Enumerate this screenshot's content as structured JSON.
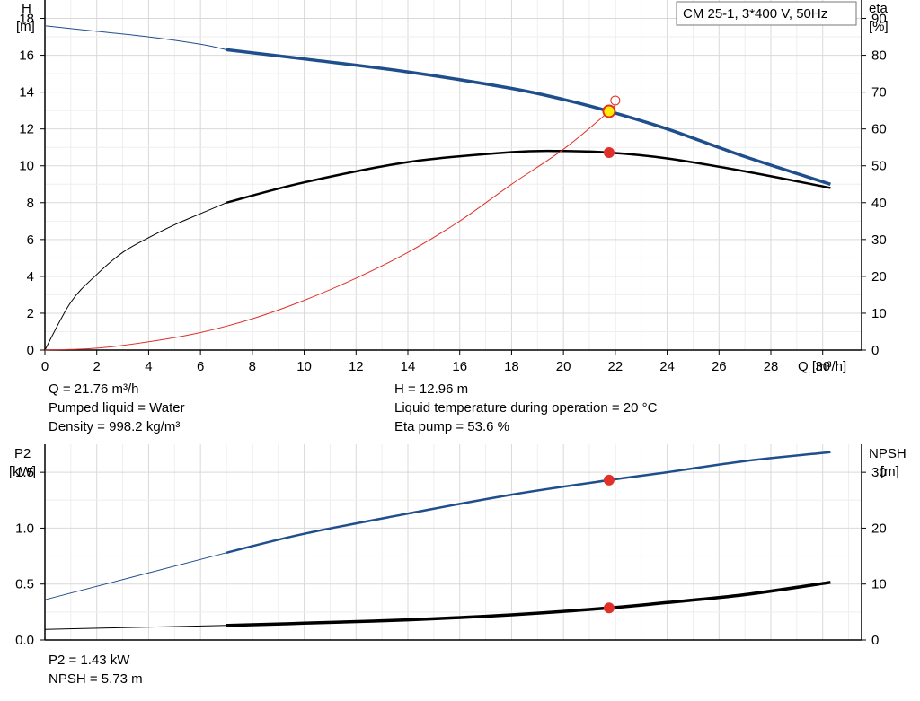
{
  "legend_box": "CM 25-1, 3*400 V, 50Hz",
  "top_chart": {
    "y_left_label": [
      "H",
      "[m]"
    ],
    "y_right_label": [
      "eta",
      "[%]"
    ],
    "x_label": "Q [m³/h]",
    "x_ticks": [
      0,
      2,
      4,
      6,
      8,
      10,
      12,
      14,
      16,
      18,
      20,
      22,
      24,
      26,
      28,
      30
    ],
    "y_left_ticks": [
      0,
      2,
      4,
      6,
      8,
      10,
      12,
      14,
      16,
      18
    ],
    "y_right_ticks": [
      0,
      10,
      20,
      30,
      40,
      50,
      60,
      70,
      80,
      90
    ]
  },
  "info_left": [
    "Q = 21.76 m³/h",
    "Pumped liquid = Water",
    "Density = 998.2 kg/m³"
  ],
  "info_right": [
    "H = 12.96 m",
    "Liquid temperature during operation = 20 °C",
    "Eta pump = 53.6 %"
  ],
  "bottom_chart": {
    "y_left_label": [
      "P2",
      "[kW]"
    ],
    "y_right_label": [
      "NPSH",
      "[m]"
    ],
    "y_left_ticks": [
      "0.0",
      "0.5",
      "1.0",
      "1.5"
    ],
    "y_right_ticks": [
      "0",
      "10",
      "20",
      "30"
    ]
  },
  "info_bottom": [
    "P2 = 1.43 kW",
    "NPSH = 5.73 m"
  ],
  "colors": {
    "head": "#1f4e8c",
    "eta": "#000000",
    "pump_eta_red": "#e0302a",
    "p2": "#1f4e8c",
    "npsh": "#000000",
    "grid": "#d9d9d9"
  },
  "chart_data": [
    {
      "type": "line",
      "x_unit": "Q [m³/h]",
      "xlim": [
        0,
        31.5
      ],
      "ylim_left": [
        0,
        19
      ],
      "ylim_right": [
        0,
        95
      ],
      "grid": true,
      "operating_point": {
        "Q": 21.76,
        "H": 12.96,
        "eta": 53.6
      },
      "series": [
        {
          "axis": "left",
          "x": [
            0,
            2,
            4,
            6,
            7
          ],
          "y": [
            17.6,
            17.3,
            17.0,
            16.6,
            16.3
          ]
        },
        {
          "axis": "left",
          "x": [
            7,
            10,
            14,
            18,
            20,
            21.76,
            24,
            27,
            30.3
          ],
          "y": [
            16.3,
            15.8,
            15.1,
            14.2,
            13.6,
            12.96,
            12.0,
            10.5,
            9.0
          ]
        },
        {
          "axis": "right",
          "x": [
            0,
            1,
            2,
            3,
            4,
            5,
            6,
            7
          ],
          "y": [
            0,
            13,
            20.5,
            26.5,
            30.5,
            34,
            37,
            40
          ]
        },
        {
          "axis": "right",
          "x": [
            7,
            10,
            14,
            18,
            20,
            21.76,
            24,
            27,
            30.3
          ],
          "y": [
            40,
            45.5,
            51,
            53.7,
            54,
            53.6,
            52,
            48.5,
            44
          ]
        },
        {
          "axis": "left",
          "x": [
            0,
            2,
            4,
            6,
            8,
            10,
            12,
            14,
            16,
            18,
            20,
            21.76,
            22
          ],
          "y": [
            0,
            0.1,
            0.45,
            0.95,
            1.7,
            2.7,
            3.9,
            5.3,
            7.0,
            9.0,
            10.9,
            12.96,
            13.4
          ]
        }
      ]
    },
    {
      "type": "line",
      "x_unit": "Q [m³/h]",
      "xlim": [
        0,
        31.5
      ],
      "ylim_left": [
        0,
        1.75
      ],
      "ylim_right": [
        0,
        35
      ],
      "grid": true,
      "operating_point": {
        "Q": 21.76,
        "P2": 1.43,
        "NPSH": 5.73
      },
      "series": [
        {
          "axis": "left",
          "x": [
            0,
            7
          ],
          "y": [
            0.36,
            0.78
          ]
        },
        {
          "axis": "left",
          "x": [
            7,
            10,
            14,
            18,
            21.76,
            24,
            27,
            30.3
          ],
          "y": [
            0.78,
            0.95,
            1.13,
            1.3,
            1.43,
            1.5,
            1.6,
            1.68
          ]
        },
        {
          "axis": "right",
          "x": [
            0,
            3,
            7
          ],
          "y": [
            1.9,
            2.2,
            2.6
          ]
        },
        {
          "axis": "right",
          "x": [
            7,
            10,
            14,
            18,
            21.76,
            24,
            27,
            30.3
          ],
          "y": [
            2.6,
            3.0,
            3.6,
            4.5,
            5.73,
            6.7,
            8.1,
            10.3
          ]
        }
      ]
    }
  ]
}
